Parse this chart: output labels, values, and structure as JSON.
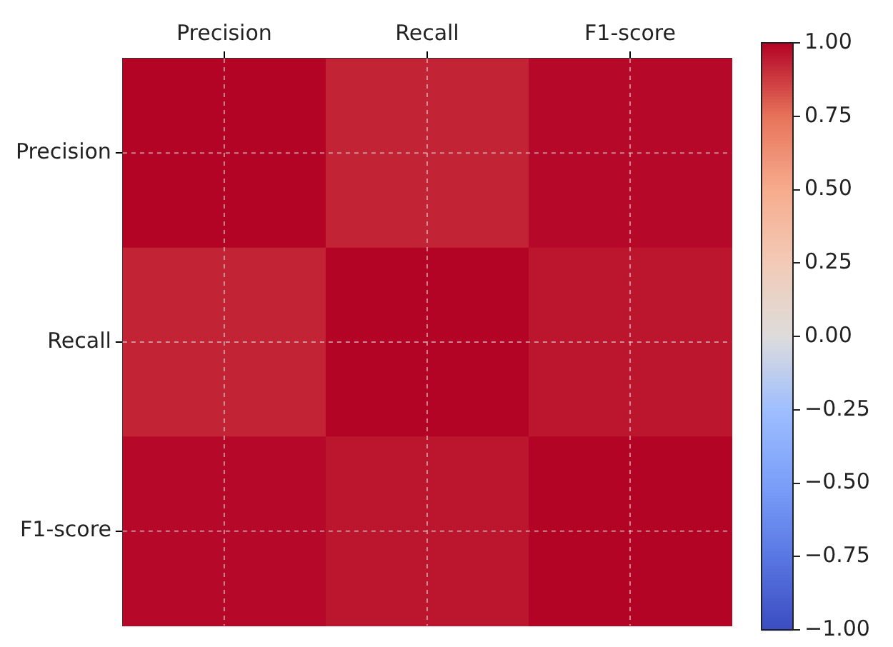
{
  "chart_data": {
    "type": "heatmap",
    "categories": [
      "Precision",
      "Recall",
      "F1-score"
    ],
    "y_categories": [
      "Precision",
      "Recall",
      "F1-score"
    ],
    "cells": [
      [
        1.0,
        0.93,
        0.99
      ],
      [
        0.93,
        1.0,
        0.96
      ],
      [
        0.99,
        0.96,
        1.0
      ]
    ],
    "clim": [
      -1,
      1
    ],
    "cticks": [
      {
        "value": -1,
        "label": "−1.00"
      },
      {
        "value": -0.75,
        "label": "−0.75"
      },
      {
        "value": -0.5,
        "label": "−0.50"
      },
      {
        "value": -0.25,
        "label": "−0.25"
      },
      {
        "value": 0,
        "label": "0.00"
      },
      {
        "value": 0.25,
        "label": "0.25"
      },
      {
        "value": 0.5,
        "label": "0.50"
      },
      {
        "value": 0.75,
        "label": "0.75"
      },
      {
        "value": 1,
        "label": "1.00"
      }
    ],
    "grid": true
  }
}
